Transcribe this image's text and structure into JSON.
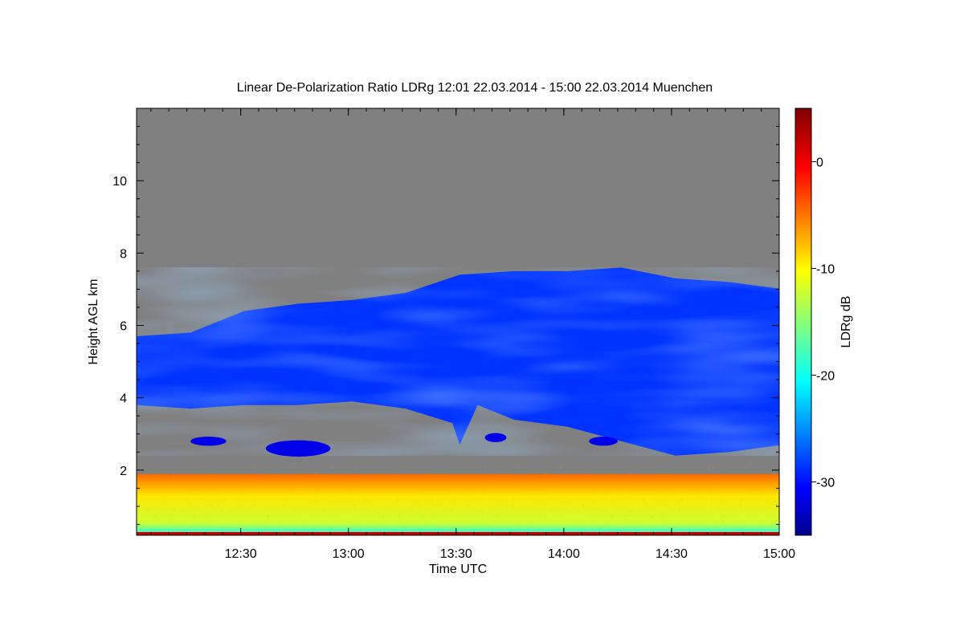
{
  "chart_data": {
    "type": "heatmap",
    "title": "Linear De-Polarization Ratio LDRg   12:01 22.03.2014 - 15:00 22.03.2014 Muenchen",
    "xlabel": "Time UTC",
    "ylabel": "Height AGL km",
    "colorbar_label": "LDRg dB",
    "x_range": [
      "12:01",
      "15:00"
    ],
    "y_range_km": [
      0.2,
      12.0
    ],
    "x_ticks": [
      "12:30",
      "13:00",
      "13:30",
      "14:00",
      "14:30",
      "15:00"
    ],
    "x_tick_minutes": [
      30,
      60,
      90,
      120,
      150,
      180
    ],
    "y_ticks": [
      2,
      4,
      6,
      8,
      10
    ],
    "colorbar_range_db": [
      -35,
      5
    ],
    "colorbar_ticks": [
      0,
      -10,
      -20,
      -30
    ],
    "background_color": "#808080",
    "colormap": [
      "#00008f",
      "#0000ff",
      "#0080ff",
      "#00ffff",
      "#80ff80",
      "#ffff00",
      "#ff8000",
      "#ff0000",
      "#800000"
    ],
    "features": {
      "ice_cloud_ldr_db": -28,
      "ice_cloud_top_km": [
        [
          0,
          5.7
        ],
        [
          15,
          5.8
        ],
        [
          30,
          6.4
        ],
        [
          45,
          6.6
        ],
        [
          60,
          6.7
        ],
        [
          75,
          6.9
        ],
        [
          90,
          7.4
        ],
        [
          105,
          7.5
        ],
        [
          120,
          7.5
        ],
        [
          135,
          7.6
        ],
        [
          150,
          7.3
        ],
        [
          165,
          7.2
        ],
        [
          180,
          7.0
        ]
      ],
      "ice_cloud_base_km": [
        [
          0,
          3.8
        ],
        [
          15,
          3.7
        ],
        [
          30,
          3.8
        ],
        [
          45,
          3.8
        ],
        [
          60,
          3.9
        ],
        [
          75,
          3.7
        ],
        [
          88,
          3.3
        ],
        [
          90,
          2.7
        ],
        [
          95,
          3.8
        ],
        [
          105,
          3.4
        ],
        [
          120,
          3.2
        ],
        [
          135,
          2.8
        ],
        [
          150,
          2.4
        ],
        [
          165,
          2.5
        ],
        [
          180,
          2.7
        ]
      ],
      "boundary_layer_top_km": 2.2,
      "boundary_layer_ldr_db": [
        -20,
        0
      ]
    }
  }
}
